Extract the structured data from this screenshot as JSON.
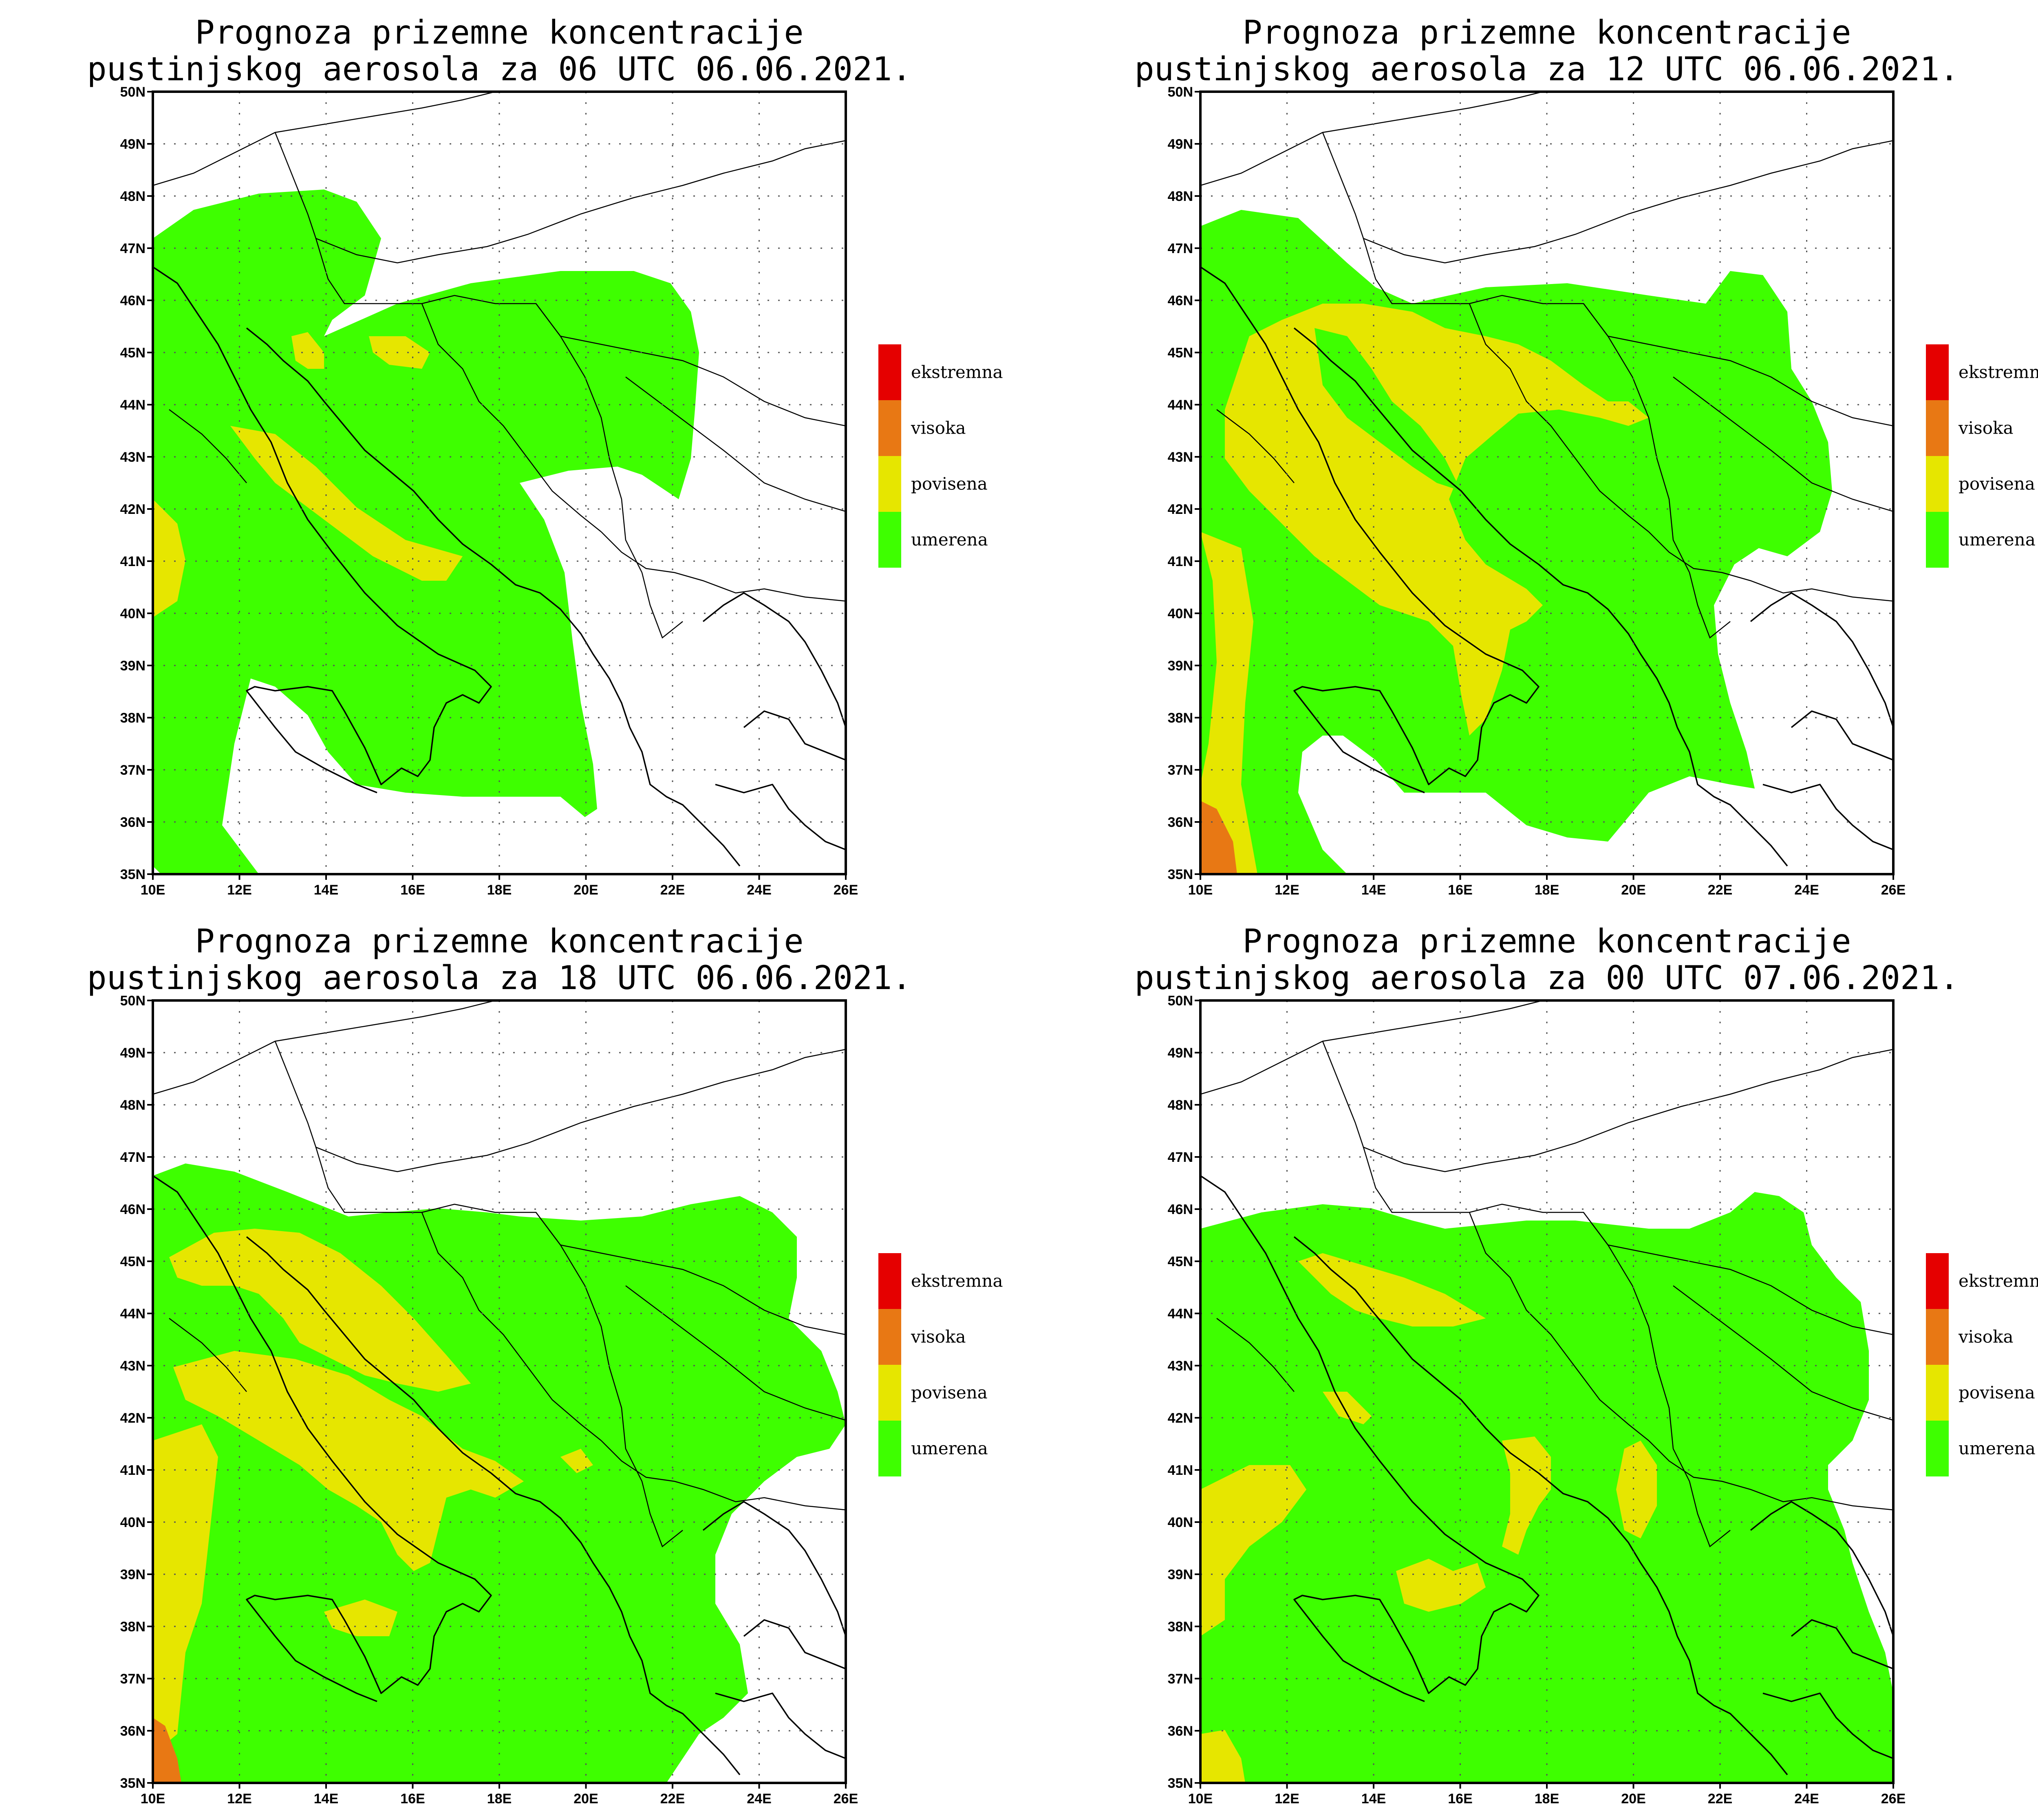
{
  "panels": [
    {
      "title_line1": "Prognoza prizemne koncentracije",
      "title_line2": "pustinjskog aerosola za 06 UTC 06.06.2021."
    },
    {
      "title_line1": "Prognoza prizemne koncentracije",
      "title_line2": "pustinjskog aerosola za 12 UTC 06.06.2021."
    },
    {
      "title_line1": "Prognoza prizemne koncentracije",
      "title_line2": "pustinjskog aerosola za 18 UTC 06.06.2021."
    },
    {
      "title_line1": "Prognoza prizemne koncentracije",
      "title_line2": "pustinjskog aerosola za 00 UTC 07.06.2021."
    }
  ],
  "lat_labels": [
    "50N",
    "49N",
    "48N",
    "47N",
    "46N",
    "45N",
    "44N",
    "43N",
    "42N",
    "41N",
    "40N",
    "39N",
    "38N",
    "37N",
    "36N",
    "35N"
  ],
  "lon_labels": [
    "10E",
    "12E",
    "14E",
    "16E",
    "18E",
    "20E",
    "22E",
    "24E",
    "26E"
  ],
  "legend": [
    {
      "label": "ekstremna",
      "color": "#e50000"
    },
    {
      "label": "visoka",
      "color": "#e87814"
    },
    {
      "label": "povisena",
      "color": "#e6e600"
    },
    {
      "label": "umerena",
      "color": "#3eff00"
    }
  ],
  "colors": {
    "umerena": "#3eff00",
    "povisena": "#e6e600",
    "visoka": "#e87814",
    "ekstremna": "#e50000"
  }
}
